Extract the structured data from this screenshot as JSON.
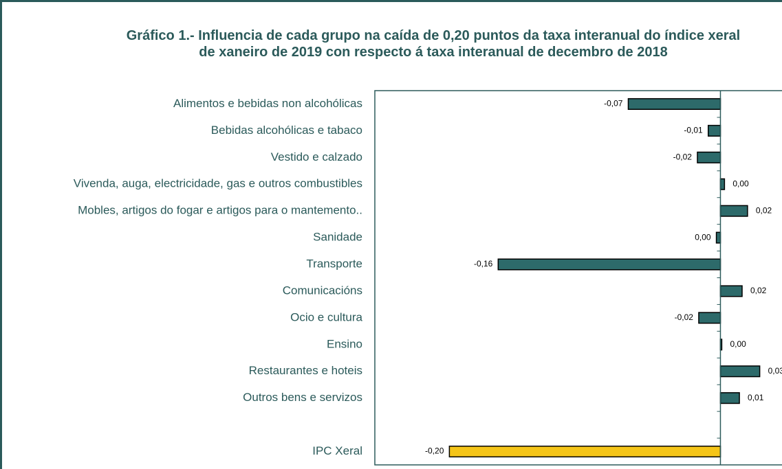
{
  "chart_data": {
    "type": "hbar",
    "title": "Gráfico 1.- Influencia de cada grupo na caída de 0,20 puntos da taxa interanual do índice xeral de xaneiro de 2019 con respecto á taxa interanual de decembro de 2018",
    "categories": [
      "Alimentos e bebidas non alcohólicas",
      "Bebidas alcohólicas e tabaco",
      "Vestido e calzado",
      "Vivenda, auga, electricidade, gas e outros combustibles",
      "Mobles, artigos do fogar e artigos para o mantemento..",
      "Sanidade",
      "Transporte",
      "Comunicacións",
      "Ocio e cultura",
      "Ensino",
      "Restaurantes e hoteis",
      "Outros bens e servizos",
      null,
      "IPC Xeral"
    ],
    "values": [
      -0.068,
      -0.009,
      -0.017,
      0.003,
      0.02,
      -0.003,
      -0.164,
      0.016,
      -0.016,
      0.001,
      0.029,
      0.014,
      null,
      -0.2
    ],
    "value_labels": [
      "-0,07",
      "-0,01",
      "-0,02",
      "0,00",
      "0,02",
      "0,00",
      "-0,16",
      "0,02",
      "-0,02",
      "0,00",
      "0,03",
      "0,01",
      null,
      "-0,20"
    ],
    "colors": [
      "#2d6a6a",
      "#2d6a6a",
      "#2d6a6a",
      "#2d6a6a",
      "#2d6a6a",
      "#2d6a6a",
      "#2d6a6a",
      "#2d6a6a",
      "#2d6a6a",
      "#2d6a6a",
      "#2d6a6a",
      "#2d6a6a",
      null,
      "#f5c518"
    ],
    "xlim": [
      -0.255,
      0.05
    ]
  }
}
